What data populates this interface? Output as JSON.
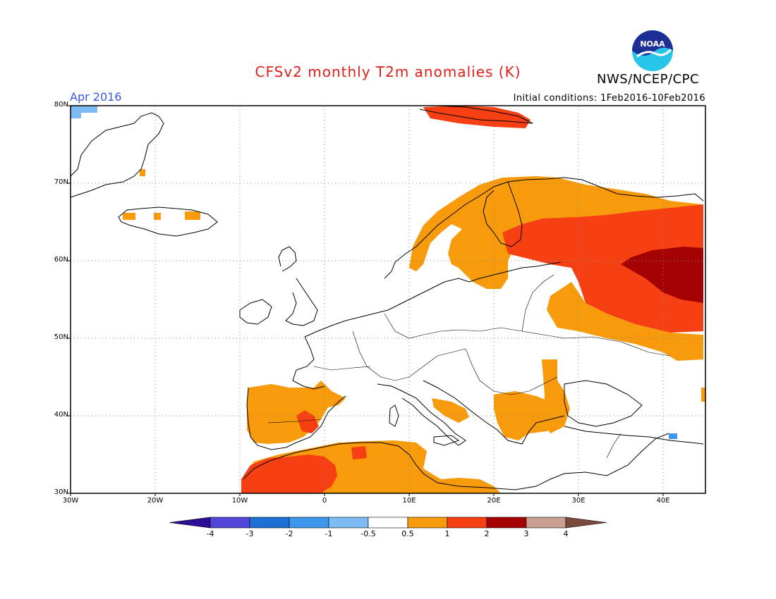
{
  "title": "CFSv2 monthly T2m anomalies (K)",
  "agency": "NWS/NCEP/CPC",
  "logo_text": "NOAA",
  "forecast_month": "Apr 2016",
  "initial_conditions": "Initial conditions: 1Feb2016-10Feb2016",
  "lat_labels": [
    "80N",
    "70N",
    "60N",
    "50N",
    "40N",
    "30N"
  ],
  "lon_labels": [
    "30W",
    "20W",
    "10W",
    "0",
    "10E",
    "20E",
    "30E",
    "40E"
  ],
  "colorbar": {
    "labels": [
      "-4",
      "-3",
      "-2",
      "-1",
      "-0.5",
      "0.5",
      "1",
      "2",
      "3",
      "4"
    ],
    "colors": [
      "#2d0e99",
      "#5246d8",
      "#1e6fd4",
      "#3b96ec",
      "#7cbcf2",
      "#ffffff",
      "#f79b0c",
      "#f63f12",
      "#a50303",
      "#c8a192",
      "#7a4a3c"
    ]
  },
  "map": {
    "extent": {
      "lon": [
        -30,
        45
      ],
      "lat": [
        30,
        80
      ]
    },
    "grid": "dotted every 10 degrees",
    "anomaly_regions": [
      {
        "label": "Scandinavia / Finland",
        "category": "0.5 to 1",
        "color": "#f79b0c"
      },
      {
        "label": "Western Russia",
        "category": "1 to 2",
        "color": "#f63f12"
      },
      {
        "label": "Central Russia east of 35E",
        "category": "2 to 3",
        "color": "#a50303"
      },
      {
        "label": "Iberian Peninsula",
        "category": "0.5 to 1",
        "color": "#f79b0c"
      },
      {
        "label": "Eastern Spain",
        "category": "1 to 2",
        "color": "#f63f12"
      },
      {
        "label": "Morocco / Algeria",
        "category": "1 to 2",
        "color": "#f63f12"
      },
      {
        "label": "North Africa",
        "category": "0.5 to 1",
        "color": "#f79b0c"
      },
      {
        "label": "Balkans / Greece / Turkey",
        "category": "0.5 to 1",
        "color": "#f79b0c"
      },
      {
        "label": "Svalbard",
        "category": "1 to 2",
        "color": "#f63f12"
      },
      {
        "label": "NE Greenland corner",
        "category": "-1 to -0.5",
        "color": "#7cbcf2"
      }
    ]
  }
}
